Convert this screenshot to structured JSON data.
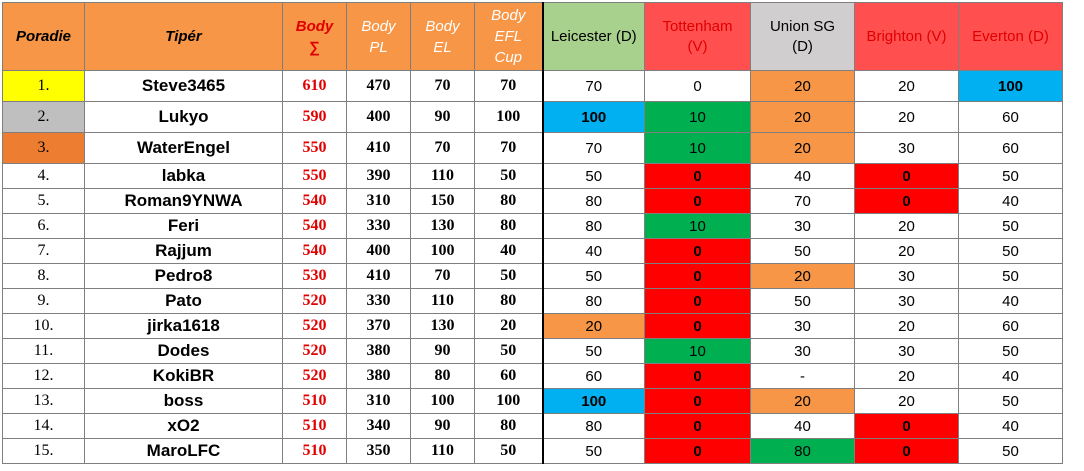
{
  "headers": {
    "rank": "Poradie",
    "tipster": "Tipér",
    "body_top": "Body",
    "body_sigma": "∑",
    "pl": [
      "Body",
      "PL"
    ],
    "el": [
      "Body",
      "EL"
    ],
    "efl": [
      "Body",
      "EFL",
      "Cup"
    ],
    "teams": [
      {
        "name": "Leicester (D)",
        "lines": [
          "Leicester (D)"
        ],
        "color": "#a9d18e"
      },
      {
        "name": "Tottenham (V)",
        "lines": [
          "Tottenham",
          "(V)"
        ],
        "color": "#ff4f4f"
      },
      {
        "name": "Union SG (D)",
        "lines": [
          "Union SG",
          "(D)"
        ],
        "color": "#d0cece"
      },
      {
        "name": "Brighton (V)",
        "lines": [
          "Brighton (V)"
        ],
        "color": "#ff4f4f"
      },
      {
        "name": "Everton (D)",
        "lines": [
          "Everton (D)"
        ],
        "color": "#ff4f4f"
      }
    ]
  },
  "rows": [
    {
      "rank": "1.",
      "name": "Steve3465",
      "body": "610",
      "pl": "470",
      "el": "70",
      "efl": "70",
      "picks": [
        "70",
        "0",
        "20",
        "20",
        "100"
      ],
      "fills": [
        "",
        "",
        "orange",
        "",
        "blue"
      ]
    },
    {
      "rank": "2.",
      "name": "Lukyo",
      "body": "590",
      "pl": "400",
      "el": "90",
      "efl": "100",
      "picks": [
        "100",
        "10",
        "20",
        "20",
        "60"
      ],
      "fills": [
        "blue",
        "green",
        "orange",
        "",
        ""
      ]
    },
    {
      "rank": "3.",
      "name": "WaterEngel",
      "body": "550",
      "pl": "410",
      "el": "70",
      "efl": "70",
      "picks": [
        "70",
        "10",
        "20",
        "30",
        "60"
      ],
      "fills": [
        "",
        "green",
        "orange",
        "",
        ""
      ]
    },
    {
      "rank": "4.",
      "name": "labka",
      "body": "550",
      "pl": "390",
      "el": "110",
      "efl": "50",
      "picks": [
        "50",
        "0",
        "40",
        "0",
        "50"
      ],
      "fills": [
        "",
        "red",
        "",
        "red",
        ""
      ]
    },
    {
      "rank": "5.",
      "name": "Roman9YNWA",
      "body": "540",
      "pl": "310",
      "el": "150",
      "efl": "80",
      "picks": [
        "80",
        "0",
        "70",
        "0",
        "40"
      ],
      "fills": [
        "",
        "red",
        "",
        "red",
        ""
      ]
    },
    {
      "rank": "6.",
      "name": "Feri",
      "body": "540",
      "pl": "330",
      "el": "130",
      "efl": "80",
      "picks": [
        "80",
        "10",
        "30",
        "20",
        "50"
      ],
      "fills": [
        "",
        "green",
        "",
        "",
        ""
      ]
    },
    {
      "rank": "7.",
      "name": "Rajjum",
      "body": "540",
      "pl": "400",
      "el": "100",
      "efl": "40",
      "picks": [
        "40",
        "0",
        "50",
        "20",
        "50"
      ],
      "fills": [
        "",
        "red",
        "",
        "",
        ""
      ]
    },
    {
      "rank": "8.",
      "name": "Pedro8",
      "body": "530",
      "pl": "410",
      "el": "70",
      "efl": "50",
      "picks": [
        "50",
        "0",
        "20",
        "30",
        "50"
      ],
      "fills": [
        "",
        "red",
        "orange",
        "",
        ""
      ]
    },
    {
      "rank": "9.",
      "name": "Pato",
      "body": "520",
      "pl": "330",
      "el": "110",
      "efl": "80",
      "picks": [
        "80",
        "0",
        "50",
        "30",
        "40"
      ],
      "fills": [
        "",
        "red",
        "",
        "",
        ""
      ]
    },
    {
      "rank": "10.",
      "name": "jirka1618",
      "body": "520",
      "pl": "370",
      "el": "130",
      "efl": "20",
      "picks": [
        "20",
        "0",
        "30",
        "20",
        "60"
      ],
      "fills": [
        "orange",
        "red",
        "",
        "",
        ""
      ]
    },
    {
      "rank": "11.",
      "name": "Dodes",
      "body": "520",
      "pl": "380",
      "el": "90",
      "efl": "50",
      "picks": [
        "50",
        "10",
        "30",
        "30",
        "50"
      ],
      "fills": [
        "",
        "green",
        "",
        "",
        ""
      ]
    },
    {
      "rank": "12.",
      "name": "KokiBR",
      "body": "520",
      "pl": "380",
      "el": "80",
      "efl": "60",
      "picks": [
        "60",
        "0",
        "-",
        "20",
        "40"
      ],
      "fills": [
        "",
        "red",
        "",
        "",
        ""
      ]
    },
    {
      "rank": "13.",
      "name": "boss",
      "body": "510",
      "pl": "310",
      "el": "100",
      "efl": "100",
      "picks": [
        "100",
        "0",
        "20",
        "20",
        "50"
      ],
      "fills": [
        "blue",
        "red",
        "orange",
        "",
        ""
      ]
    },
    {
      "rank": "14.",
      "name": "xO2",
      "body": "510",
      "pl": "340",
      "el": "90",
      "efl": "80",
      "picks": [
        "80",
        "0",
        "40",
        "0",
        "40"
      ],
      "fills": [
        "",
        "red",
        "",
        "red",
        ""
      ]
    },
    {
      "rank": "15.",
      "name": "MaroLFC",
      "body": "510",
      "pl": "350",
      "el": "110",
      "efl": "50",
      "picks": [
        "50",
        "0",
        "80",
        "0",
        "50"
      ],
      "fills": [
        "",
        "red",
        "green",
        "red",
        ""
      ]
    }
  ]
}
